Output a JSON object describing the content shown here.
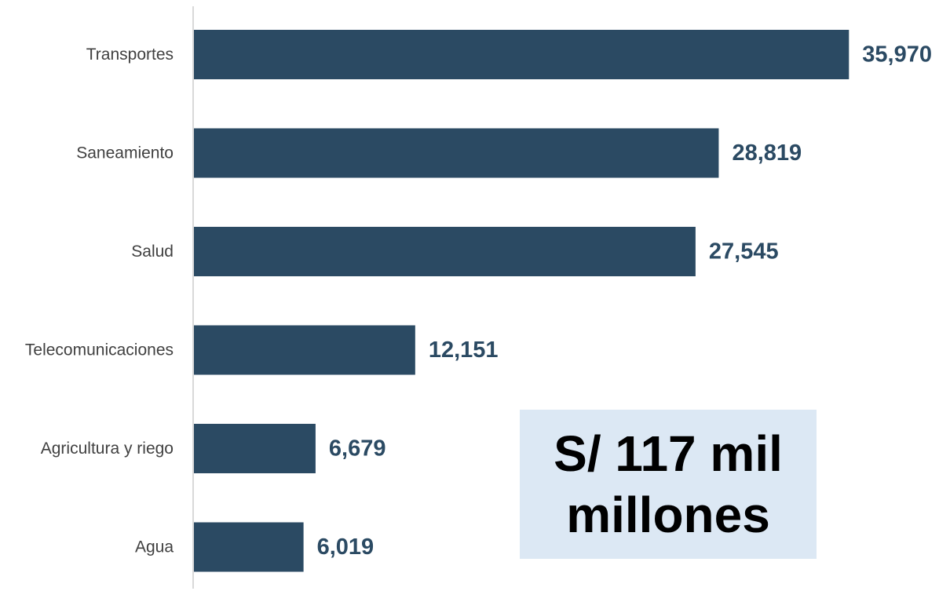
{
  "colors": {
    "bar": "#2b4a63",
    "value_label": "#2b4a63",
    "axis_line": "#d9d9d9",
    "total_box_bg": "#dce8f4"
  },
  "chart_data": {
    "type": "bar",
    "orientation": "horizontal",
    "categories": [
      "Transportes",
      "Saneamiento",
      "Salud",
      "Telecomunicaciones",
      "Agricultura y riego",
      "Agua"
    ],
    "values": [
      35970,
      28819,
      27545,
      12151,
      6679,
      6019
    ],
    "data_labels": [
      "35,970",
      "28,819",
      "27,545",
      "12,151",
      "6,679",
      "6,019"
    ],
    "title": "",
    "xlabel": "",
    "ylabel": "",
    "xlim": [
      0,
      36000
    ],
    "grid": false,
    "legend": "none"
  },
  "total_box": {
    "line1": "S/ 117 mil",
    "line2": "millones"
  }
}
